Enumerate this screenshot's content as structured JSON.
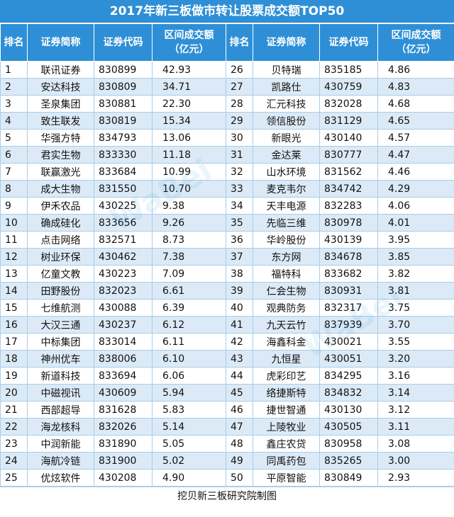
{
  "title": "2017年新三板做市转让股票成交额TOP50",
  "headers": {
    "rank": "排名",
    "name": "证券简称",
    "code": "证券代码",
    "amount_line1": "区间成交额",
    "amount_line2": "（亿元）"
  },
  "left": [
    {
      "rank": "1",
      "name": "联讯证券",
      "code": "830899",
      "amount": "42.93"
    },
    {
      "rank": "2",
      "name": "安达科技",
      "code": "830809",
      "amount": "34.71"
    },
    {
      "rank": "3",
      "name": "圣泉集团",
      "code": "830881",
      "amount": "22.30"
    },
    {
      "rank": "4",
      "name": "致生联发",
      "code": "830819",
      "amount": "15.34"
    },
    {
      "rank": "5",
      "name": "华强方特",
      "code": "834793",
      "amount": "13.06"
    },
    {
      "rank": "6",
      "name": "君实生物",
      "code": "833330",
      "amount": "11.18"
    },
    {
      "rank": "7",
      "name": "联赢激光",
      "code": "833684",
      "amount": "10.99"
    },
    {
      "rank": "8",
      "name": "成大生物",
      "code": "831550",
      "amount": "10.70"
    },
    {
      "rank": "9",
      "name": "伊禾农品",
      "code": "430225",
      "amount": "9.38"
    },
    {
      "rank": "10",
      "name": "确成硅化",
      "code": "833656",
      "amount": "9.26"
    },
    {
      "rank": "11",
      "name": "点击网络",
      "code": "832571",
      "amount": "8.73"
    },
    {
      "rank": "12",
      "name": "树业环保",
      "code": "430462",
      "amount": "7.38"
    },
    {
      "rank": "13",
      "name": "亿童文教",
      "code": "430223",
      "amount": "7.09"
    },
    {
      "rank": "14",
      "name": "田野股份",
      "code": "832023",
      "amount": "6.61"
    },
    {
      "rank": "15",
      "name": "七维航测",
      "code": "430088",
      "amount": "6.39"
    },
    {
      "rank": "16",
      "name": "大汉三通",
      "code": "430237",
      "amount": "6.12"
    },
    {
      "rank": "17",
      "name": "中标集团",
      "code": "833014",
      "amount": "6.11"
    },
    {
      "rank": "18",
      "name": "神州优车",
      "code": "838006",
      "amount": "6.10"
    },
    {
      "rank": "19",
      "name": "新道科技",
      "code": "833694",
      "amount": "6.06"
    },
    {
      "rank": "20",
      "name": "中磁视讯",
      "code": "430609",
      "amount": "5.94"
    },
    {
      "rank": "21",
      "name": "西部超导",
      "code": "831628",
      "amount": "5.83"
    },
    {
      "rank": "22",
      "name": "海龙核科",
      "code": "832026",
      "amount": "5.14"
    },
    {
      "rank": "23",
      "name": "中润新能",
      "code": "831890",
      "amount": "5.05"
    },
    {
      "rank": "24",
      "name": "海航冷链",
      "code": "831900",
      "amount": "5.02"
    },
    {
      "rank": "25",
      "name": "优炫软件",
      "code": "430208",
      "amount": "4.90"
    }
  ],
  "right": [
    {
      "rank": "26",
      "name": "贝特瑞",
      "code": "835185",
      "amount": "4.86"
    },
    {
      "rank": "27",
      "name": "凯路仕",
      "code": "430759",
      "amount": "4.83"
    },
    {
      "rank": "28",
      "name": "汇元科技",
      "code": "832028",
      "amount": "4.68"
    },
    {
      "rank": "29",
      "name": "领信股份",
      "code": "831129",
      "amount": "4.65"
    },
    {
      "rank": "30",
      "name": "新眼光",
      "code": "430140",
      "amount": "4.57"
    },
    {
      "rank": "31",
      "name": "金达莱",
      "code": "830777",
      "amount": "4.47"
    },
    {
      "rank": "32",
      "name": "山水环境",
      "code": "831562",
      "amount": "4.46"
    },
    {
      "rank": "33",
      "name": "麦克韦尔",
      "code": "834742",
      "amount": "4.29"
    },
    {
      "rank": "34",
      "name": "天丰电源",
      "code": "832283",
      "amount": "4.06"
    },
    {
      "rank": "35",
      "name": "先临三维",
      "code": "830978",
      "amount": "4.01"
    },
    {
      "rank": "36",
      "name": "华岭股份",
      "code": "430139",
      "amount": "3.95"
    },
    {
      "rank": "37",
      "name": "东方网",
      "code": "834678",
      "amount": "3.85"
    },
    {
      "rank": "38",
      "name": "福特科",
      "code": "833682",
      "amount": "3.82"
    },
    {
      "rank": "39",
      "name": "仁会生物",
      "code": "830931",
      "amount": "3.81"
    },
    {
      "rank": "40",
      "name": "观典防务",
      "code": "832317",
      "amount": "3.75"
    },
    {
      "rank": "41",
      "name": "九天云竹",
      "code": "837939",
      "amount": "3.70"
    },
    {
      "rank": "42",
      "name": "海鑫科金",
      "code": "430021",
      "amount": "3.55"
    },
    {
      "rank": "43",
      "name": "九恒星",
      "code": "430051",
      "amount": "3.20"
    },
    {
      "rank": "44",
      "name": "虎彩印艺",
      "code": "834295",
      "amount": "3.16"
    },
    {
      "rank": "45",
      "name": "络捷斯特",
      "code": "834832",
      "amount": "3.14"
    },
    {
      "rank": "46",
      "name": "捷世智通",
      "code": "430130",
      "amount": "3.12"
    },
    {
      "rank": "47",
      "name": "上陵牧业",
      "code": "430505",
      "amount": "3.11"
    },
    {
      "rank": "48",
      "name": "鑫庄农贷",
      "code": "830958",
      "amount": "3.08"
    },
    {
      "rank": "49",
      "name": "同禹药包",
      "code": "835265",
      "amount": "3.00"
    },
    {
      "rank": "50",
      "name": "平原智能",
      "code": "830849",
      "amount": "2.93"
    }
  ],
  "footer": "挖贝新三板研究院制图",
  "watermark": "WaBei Research",
  "colors": {
    "header_bg": "#2e8fd6",
    "row_alt_bg": "#dbeaf6",
    "border": "#a9cdea"
  }
}
